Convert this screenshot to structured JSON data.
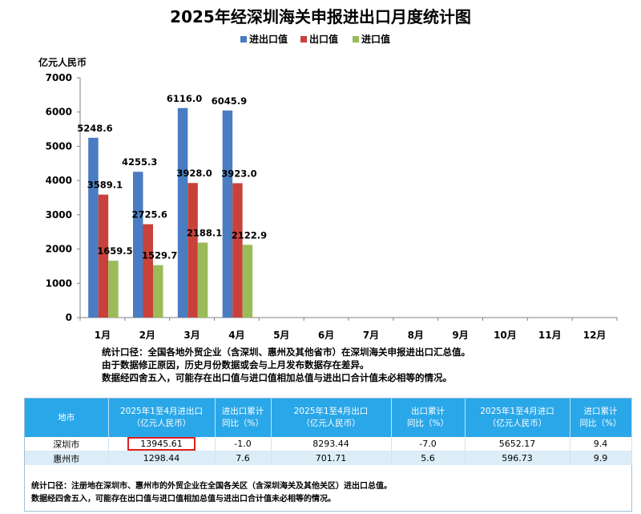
{
  "chart_data": {
    "type": "bar",
    "title": "2025年经深圳海关申报进出口月度统计图",
    "ylabel": "亿元人民币",
    "ylim": [
      0,
      7000
    ],
    "yticks": [
      0,
      1000,
      2000,
      3000,
      4000,
      5000,
      6000,
      7000
    ],
    "grid": false,
    "legend_position": "top",
    "categories": [
      "1月",
      "2月",
      "3月",
      "4月",
      "5月",
      "6月",
      "7月",
      "8月",
      "9月",
      "10月",
      "11月",
      "12月"
    ],
    "series": [
      {
        "name": "进出口值",
        "color": "#4a7cc2",
        "values": [
          5248.6,
          4255.3,
          6116.0,
          6045.9,
          null,
          null,
          null,
          null,
          null,
          null,
          null,
          null
        ]
      },
      {
        "name": "出口值",
        "color": "#c8423b",
        "values": [
          3589.1,
          2725.6,
          3928.0,
          3923.0,
          null,
          null,
          null,
          null,
          null,
          null,
          null,
          null
        ]
      },
      {
        "name": "进口值",
        "color": "#9bbb59",
        "values": [
          1659.5,
          1529.7,
          2188.1,
          2122.9,
          null,
          null,
          null,
          null,
          null,
          null,
          null,
          null
        ]
      }
    ],
    "data_labels": {
      "进出口值": [
        "5248.6",
        "4255.3",
        "6116.0",
        "6045.9"
      ],
      "出口值": [
        "3589.1",
        "2725.6",
        "3928.0",
        "3923.0"
      ],
      "进口值": [
        "1659.5",
        "1529.7",
        "2188.1",
        "2122.9"
      ]
    }
  },
  "notes": [
    "统计口径：全国各地外贸企业（含深圳、惠州及其他省市）在深圳海关申报进出口汇总值。",
    "由于数据修正原因，历史月份数据或会与上月发布数据存在差异。",
    "数据经四舍五入，可能存在出口值与进口值相加总值与进出口合计值未必相等的情况。"
  ],
  "table": {
    "headers": [
      [
        "地市"
      ],
      [
        "2025年1至4月进出口",
        "（亿元人民币）"
      ],
      [
        "进出口累计",
        "同比（%）"
      ],
      [
        "2025年1至4月出口",
        "（亿元人民币）"
      ],
      [
        "出口累计",
        "同比（%）"
      ],
      [
        "2025年1至4月进口",
        "（亿元人民币）"
      ],
      [
        "进口累计",
        "同比（%）"
      ]
    ],
    "rows": [
      [
        "深圳市",
        "13945.61",
        "-1.0",
        "8293.44",
        "-7.0",
        "5652.17",
        "9.4"
      ],
      [
        "惠州市",
        "1298.44",
        "7.6",
        "701.71",
        "5.6",
        "596.73",
        "9.9"
      ]
    ],
    "notes": [
      "统计口径：注册地在深圳市、惠州市的外贸企业在全国各关区（含深圳海关及其他关区）进出口总值。",
      "数据经四舍五入，可能存在出口值与进口值相加总值与进出口合计值未必相等的情况。"
    ]
  }
}
